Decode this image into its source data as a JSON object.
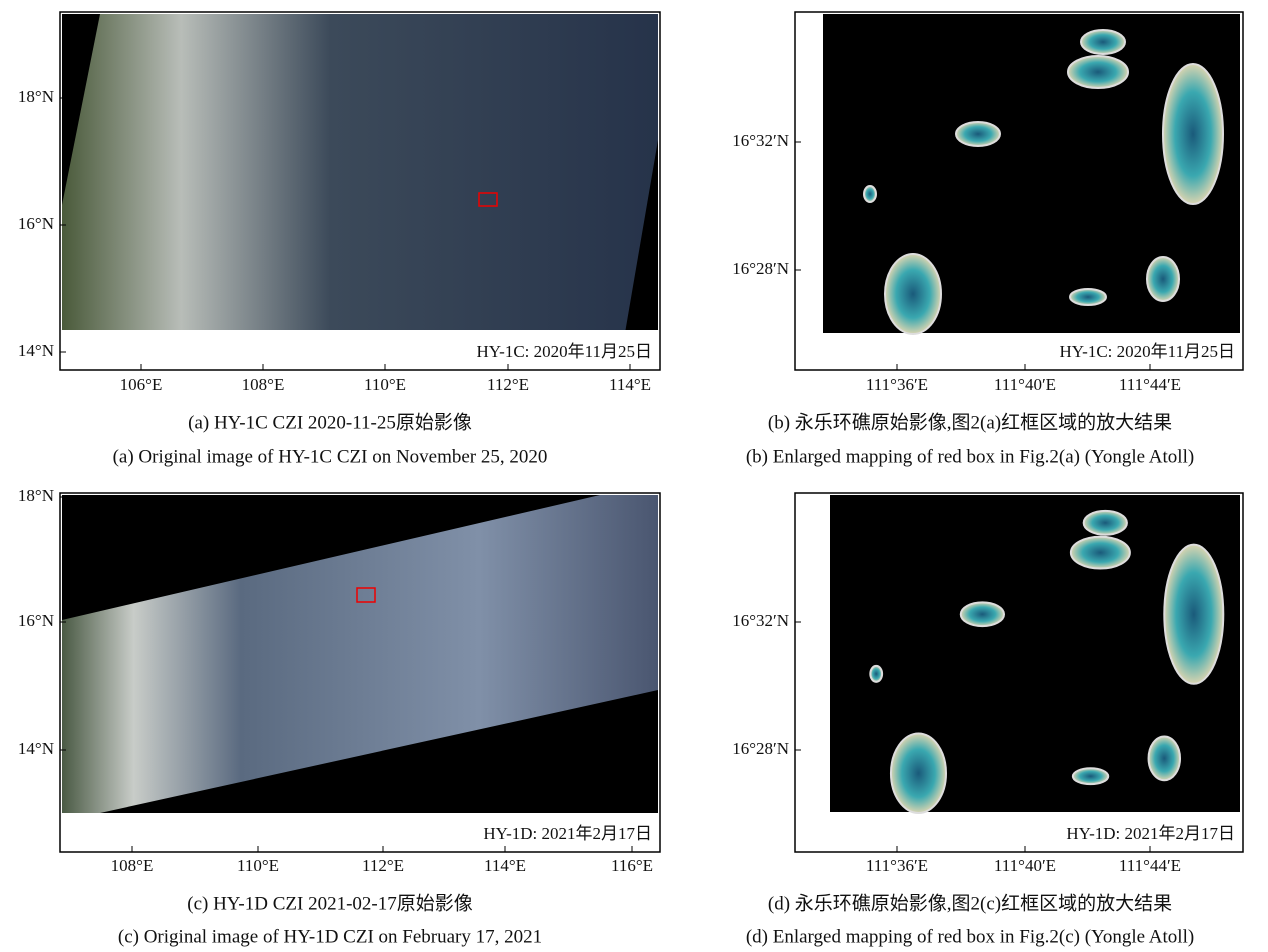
{
  "panels": [
    {
      "yticks": [
        "18°N",
        "16°N",
        "14°N"
      ],
      "xticks": [
        "106°E",
        "108°E",
        "110°E",
        "112°E",
        "114°E"
      ],
      "stamp": "HY-1C: 2020年11月25日",
      "caption_cn": "(a) HY-1C CZI 2020-11-25原始影像",
      "caption_en": "(a) Original image of HY-1C CZI on November 25, 2020"
    },
    {
      "yticks": [
        "16°32′N",
        "16°28′N"
      ],
      "xticks": [
        "111°36′E",
        "111°40′E",
        "111°44′E"
      ],
      "stamp": "HY-1C: 2020年11月25日",
      "caption_cn": "(b) 永乐环礁原始影像,图2(a)红框区域的放大结果",
      "caption_en": "(b) Enlarged mapping of red box in Fig.2(a) (Yongle Atoll)"
    },
    {
      "yticks": [
        "18°N",
        "16°N",
        "14°N"
      ],
      "xticks": [
        "108°E",
        "110°E",
        "112°E",
        "114°E",
        "116°E"
      ],
      "stamp": "HY-1D: 2021年2月17日",
      "caption_cn": "(c) HY-1D CZI 2021-02-17原始影像",
      "caption_en": "(c) Original image of HY-1D CZI on February 17, 2021"
    },
    {
      "yticks": [
        "16°32′N",
        "16°28′N"
      ],
      "xticks": [
        "111°36′E",
        "111°40′E",
        "111°44′E"
      ],
      "stamp": "HY-1D: 2021年2月17日",
      "caption_cn": "(d) 永乐环礁原始影像,图2(c)红框区域的放大结果",
      "caption_en": "(d) Enlarged mapping of red box in Fig.2(c) (Yongle Atoll)"
    }
  ]
}
